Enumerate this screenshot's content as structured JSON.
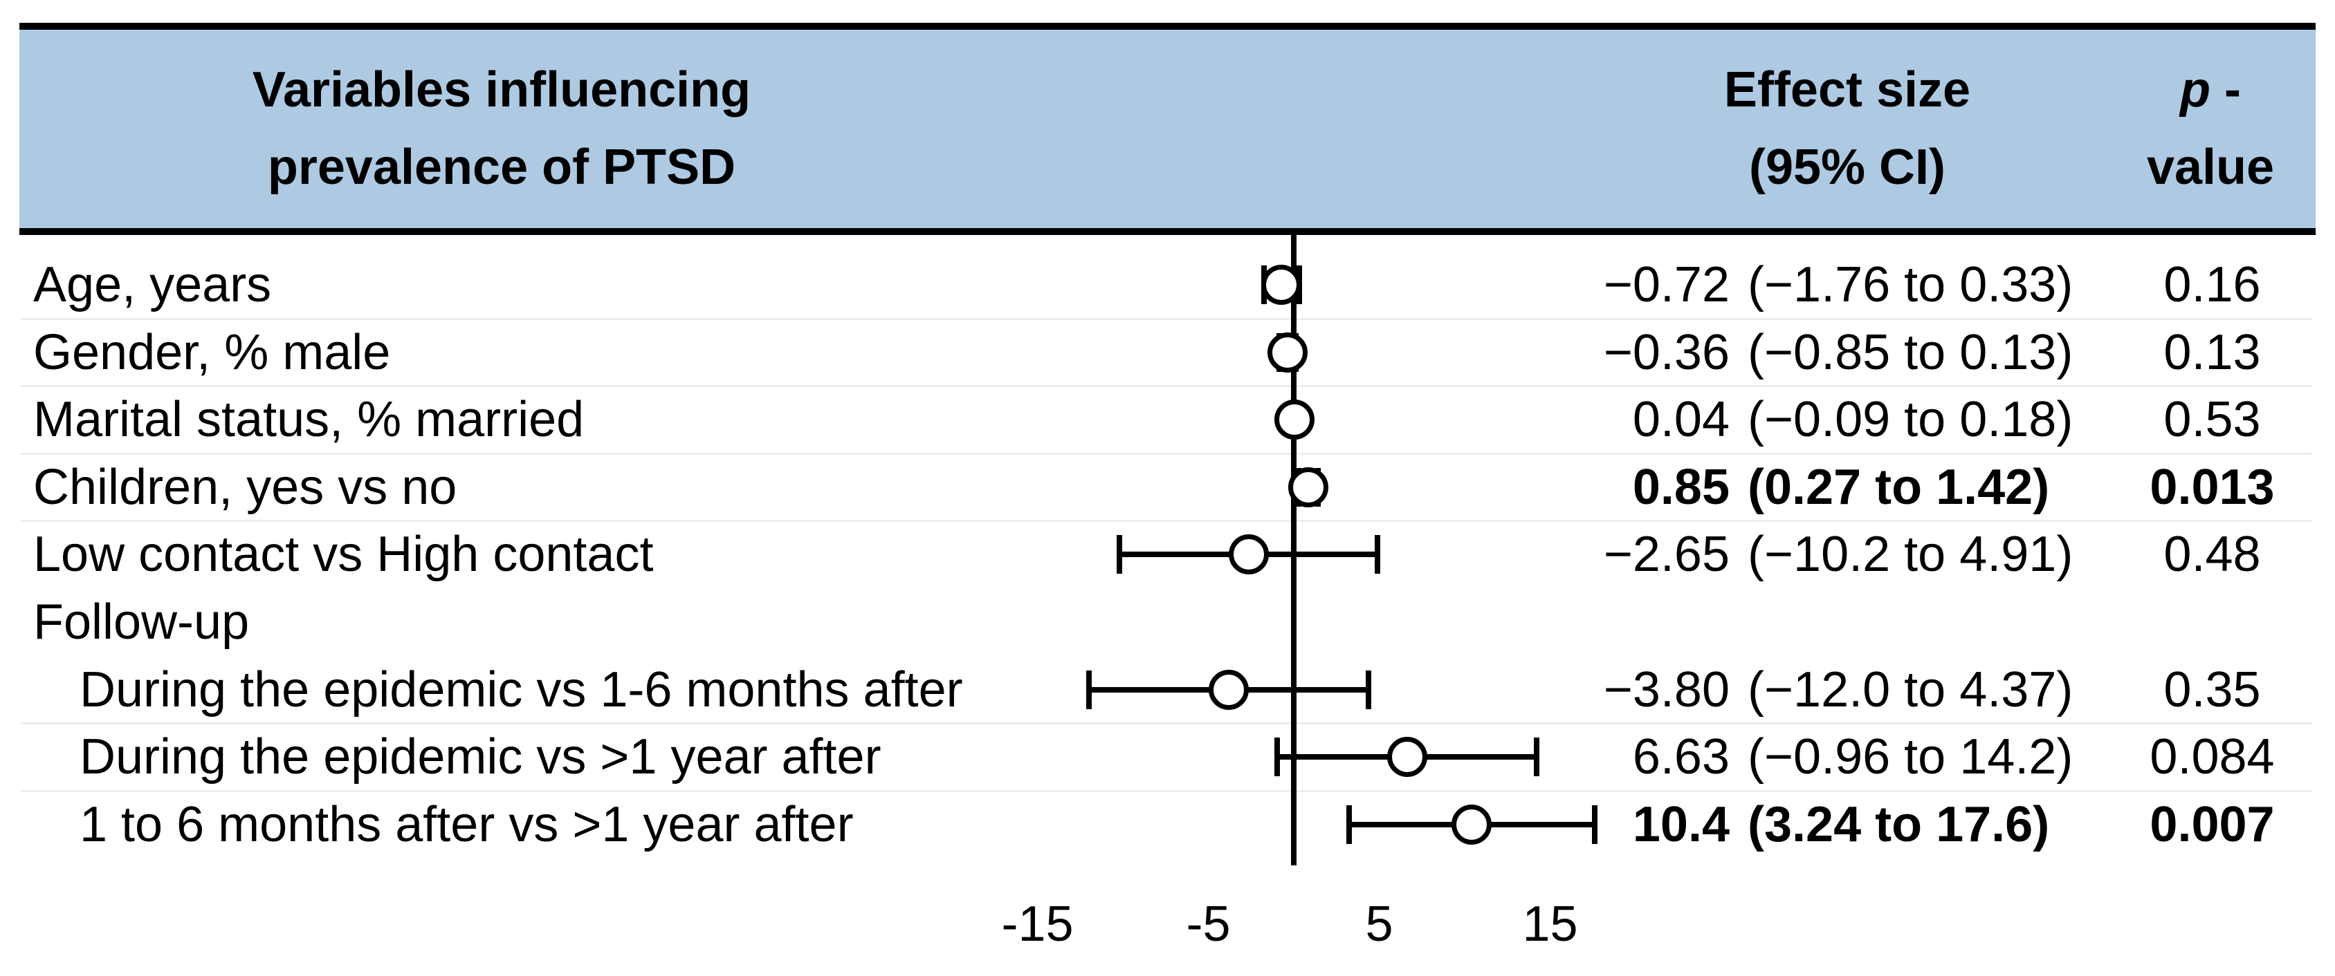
{
  "header": {
    "title_line1": "Variables influencing",
    "title_line2": "prevalence of PTSD",
    "effect_line1": "Effect size",
    "effect_line2": "(95% CI)",
    "p_italic": "p",
    "p_dash": " -",
    "p_line2": "value"
  },
  "colors": {
    "header_bg": "#aec9e2",
    "border": "#000000",
    "separator": "#ededed",
    "marker_fill": "#ffffff",
    "line": "#000000"
  },
  "chart_data": {
    "type": "forest",
    "title": "Variables influencing prevalence of PTSD",
    "columns": [
      "Variables influencing prevalence of PTSD",
      "Effect size (95% CI)",
      "p-value"
    ],
    "axis": {
      "zero_line": 0,
      "xlim": [
        -19,
        20
      ],
      "ticks": [
        {
          "value": -15,
          "label": "-15"
        },
        {
          "value": -5,
          "label": "-5"
        },
        {
          "value": 5,
          "label": "5"
        },
        {
          "value": 15,
          "label": "15"
        }
      ]
    },
    "separators_after_rows": [
      0,
      1,
      2,
      3,
      6,
      7
    ],
    "rows": [
      {
        "label": "Age, years",
        "indent": false,
        "effect": -0.72,
        "ci_low": -1.76,
        "ci_high": 0.33,
        "effect_text": "−0.72",
        "ci_text": "(−1.76 to 0.33)",
        "p_text": "0.16",
        "significant": false
      },
      {
        "label": "Gender, % male",
        "indent": false,
        "effect": -0.36,
        "ci_low": -0.85,
        "ci_high": 0.13,
        "effect_text": "−0.36",
        "ci_text": "(−0.85 to 0.13)",
        "p_text": "0.13",
        "significant": false
      },
      {
        "label": "Marital status, % married",
        "indent": false,
        "effect": 0.04,
        "ci_low": -0.09,
        "ci_high": 0.18,
        "effect_text": "0.04",
        "ci_text": "(−0.09 to 0.18)",
        "p_text": "0.53",
        "significant": false
      },
      {
        "label": "Children, yes vs no",
        "indent": false,
        "effect": 0.85,
        "ci_low": 0.27,
        "ci_high": 1.42,
        "effect_text": "0.85",
        "ci_text": "(0.27 to 1.42)",
        "p_text": "0.013",
        "significant": true
      },
      {
        "label": "Low contact vs High contact",
        "indent": false,
        "effect": -2.65,
        "ci_low": -10.2,
        "ci_high": 4.91,
        "effect_text": "−2.65",
        "ci_text": "(−10.2 to 4.91)",
        "p_text": "0.48",
        "significant": false
      },
      {
        "label": "Follow-up",
        "indent": false,
        "group_header": true
      },
      {
        "label": "During the epidemic vs 1-6 months after",
        "indent": true,
        "effect": -3.8,
        "ci_low": -12.0,
        "ci_high": 4.37,
        "effect_text": "−3.80",
        "ci_text": "(−12.0 to 4.37)",
        "p_text": "0.35",
        "significant": false
      },
      {
        "label": "During the epidemic vs >1 year after",
        "indent": true,
        "effect": 6.63,
        "ci_low": -0.96,
        "ci_high": 14.2,
        "effect_text": "6.63",
        "ci_text": "(−0.96 to 14.2)",
        "p_text": "0.084",
        "significant": false
      },
      {
        "label": "1 to 6 months after vs >1 year after",
        "indent": true,
        "effect": 10.4,
        "ci_low": 3.24,
        "ci_high": 17.6,
        "effect_text": "10.4",
        "ci_text": "(3.24 to 17.6)",
        "p_text": "0.007",
        "significant": true
      }
    ]
  }
}
